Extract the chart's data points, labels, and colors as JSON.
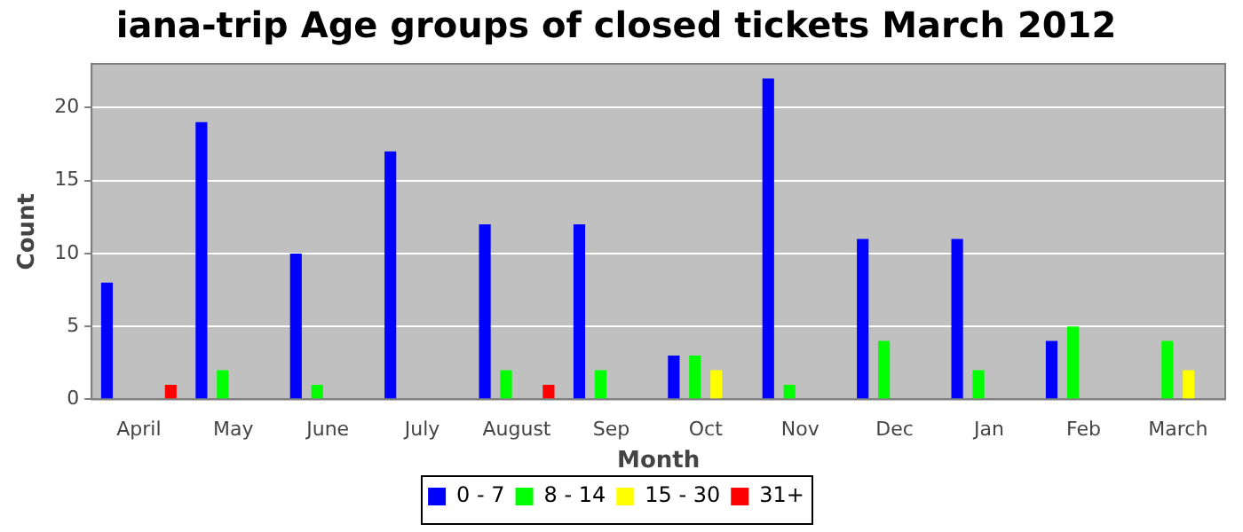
{
  "chart_data": {
    "type": "bar",
    "title": "iana-trip Age groups of closed tickets March 2012",
    "xlabel": "Month",
    "ylabel": "Count",
    "categories": [
      "April",
      "May",
      "June",
      "July",
      "August",
      "Sep",
      "Oct",
      "Nov",
      "Dec",
      "Jan",
      "Feb",
      "March"
    ],
    "series": [
      {
        "name": "0 - 7",
        "color": "#0000ff",
        "values": [
          8,
          19,
          10,
          17,
          12,
          12,
          3,
          22,
          11,
          11,
          4,
          0
        ]
      },
      {
        "name": "8 - 14",
        "color": "#00ff00",
        "values": [
          0,
          2,
          1,
          0,
          2,
          2,
          3,
          1,
          4,
          2,
          5,
          4
        ]
      },
      {
        "name": "15 - 30",
        "color": "#ffff00",
        "values": [
          0,
          0,
          0,
          0,
          0,
          0,
          2,
          0,
          0,
          0,
          0,
          2
        ]
      },
      {
        "name": "31+",
        "color": "#ff0000",
        "values": [
          1,
          0,
          0,
          0,
          1,
          0,
          0,
          0,
          0,
          0,
          0,
          0
        ]
      }
    ],
    "ylim": [
      0,
      23
    ],
    "yticks": [
      0,
      5,
      10,
      15,
      20
    ],
    "grid": "y",
    "legend": "bottom"
  }
}
